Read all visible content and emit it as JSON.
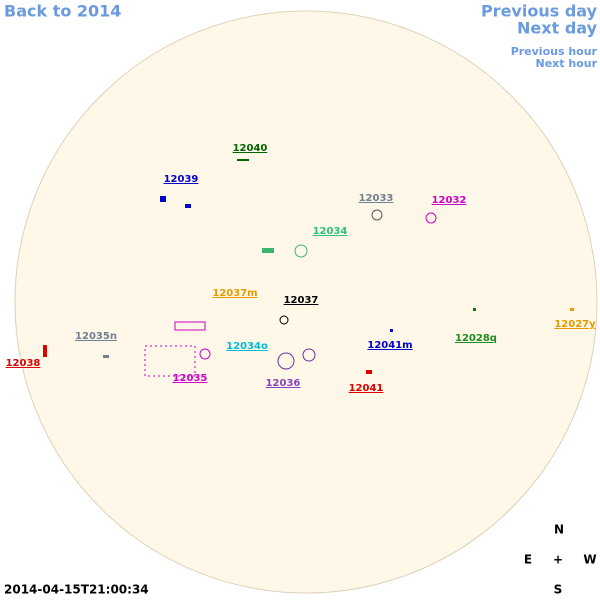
{
  "nav": {
    "back": "Back to 2014",
    "previous_day": "Previous day",
    "next_day": "Next day",
    "previous_hour": "Previous hour",
    "next_hour": "Next hour"
  },
  "regions": [
    "12040",
    "12039",
    "12033",
    "12032",
    "12034",
    "12037m",
    "12037",
    "12027y",
    "12035n",
    "12028q",
    "12034o",
    "12041m",
    "12038",
    "12035",
    "12036",
    "12041"
  ],
  "timestamp": "2014-04-15T21:00:34",
  "compass": {
    "north": "N",
    "east": "E",
    "center": "+",
    "west": "W",
    "south": "S"
  }
}
